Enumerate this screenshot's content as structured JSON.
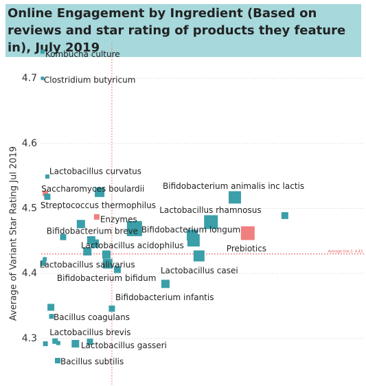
{
  "chart_data": {
    "type": "scatter",
    "title": "Online Engagement by Ingredient (Based on reviews and star rating of products they feature in), July 2019",
    "y_label": "Average of Variant Star Rating Jul 2019",
    "xlim": [
      0,
      100
    ],
    "ylim": [
      4.227,
      4.755
    ],
    "yticks": [
      4.3,
      4.4,
      4.5,
      4.6,
      4.7
    ],
    "grid": true,
    "reference_lines": [
      {
        "axis": "y",
        "value": 4.43,
        "label": "Average line 2: 4.43",
        "color": "#e8544e"
      },
      {
        "axis": "x",
        "value": 21.9,
        "color": "#e8846e"
      }
    ],
    "points": {
      "labels": [
        "Kombucha culture",
        "Clostridium butyricum",
        "Lactobacillus curvatus",
        "Saccharomyces boulardii",
        "Streptococcus thermophilus",
        null,
        "Enzymes",
        "Bifidobacterium animalis inc lactis",
        "Lactobacillus rhamnosus",
        null,
        "Prebiotics",
        "Bifidobacterium breve",
        null,
        "Bifidobacterium longum",
        null,
        null,
        "Lactobacillus acidophilus",
        null,
        null,
        null,
        null,
        "Bifidobacterium bifidum",
        "Lactobacillus casei",
        "Lactobacillus salivarius",
        null,
        "Bifidobacterium infantis",
        null,
        null,
        "Bacillus coagulans",
        "Lactobacillus brevis",
        null,
        null,
        "Lactobacillus gasseri",
        null,
        "Bacillus subtilis"
      ],
      "x": [
        0.4,
        0.4,
        1.9,
        1.3,
        1.9,
        18.1,
        17.2,
        60.0,
        52.6,
        75.5,
        64.0,
        12.3,
        6.8,
        28.9,
        46.8,
        47.2,
        15.5,
        16.6,
        14.3,
        20.2,
        20.6,
        23.6,
        48.9,
        0.6,
        1.1,
        38.5,
        21.9,
        3.0,
        3.2,
        4.3,
        5.3,
        1.3,
        10.6,
        15.1,
        5.1
      ],
      "y": [
        4.741,
        4.7,
        4.549,
        4.523,
        4.518,
        4.525,
        4.487,
        4.517,
        4.479,
        4.489,
        4.462,
        4.476,
        4.456,
        4.469,
        4.459,
        4.451,
        4.451,
        4.446,
        4.434,
        4.429,
        4.415,
        4.406,
        4.427,
        4.416,
        4.422,
        4.384,
        4.346,
        4.348,
        4.334,
        4.296,
        4.293,
        4.292,
        4.292,
        4.295,
        4.266
      ],
      "sizes": [
        6,
        5,
        6,
        8,
        9,
        14,
        8,
        18,
        20,
        10,
        20,
        12,
        9,
        22,
        16,
        18,
        12,
        12,
        12,
        12,
        14,
        10,
        16,
        8,
        6,
        12,
        9,
        10,
        7,
        8,
        6,
        7,
        11,
        9,
        8
      ],
      "colors": [
        "#3a9fa8",
        "#3a9fa8",
        "#3a9fa8",
        "#f07f7f",
        "#3a9fa8",
        "#3a9fa8",
        "#f07f7f",
        "#3a9fa8",
        "#3a9fa8",
        "#3a9fa8",
        "#f07f7f",
        "#3a9fa8",
        "#3a9fa8",
        "#3a9fa8",
        "#3a9fa8",
        "#3a9fa8",
        "#3a9fa8",
        "#3a9fa8",
        "#3a9fa8",
        "#3a9fa8",
        "#3a9fa8",
        "#3a9fa8",
        "#3a9fa8",
        "#3a9fa8",
        "#3a9fa8",
        "#3a9fa8",
        "#3a9fa8",
        "#3a9fa8",
        "#3a9fa8",
        "#3a9fa8",
        "#3a9fa8",
        "#3a9fa8",
        "#3a9fa8",
        "#3a9fa8",
        "#3a9fa8"
      ]
    }
  }
}
